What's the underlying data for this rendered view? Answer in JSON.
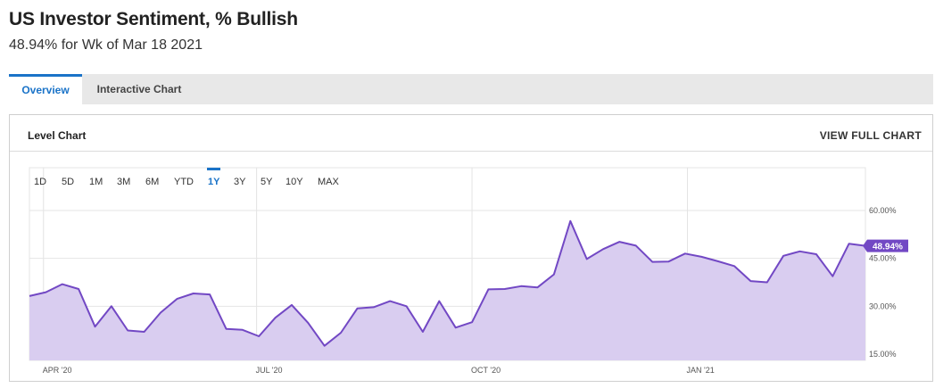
{
  "header": {
    "title": "US Investor Sentiment, % Bullish",
    "subtitle": "48.94% for Wk of Mar 18 2021"
  },
  "tabs": [
    {
      "label": "Overview",
      "active": true
    },
    {
      "label": "Interactive Chart",
      "active": false
    }
  ],
  "panel": {
    "title": "Level Chart",
    "view_full_label": "VIEW FULL CHART"
  },
  "ranges": [
    "1D",
    "5D",
    "1M",
    "3M",
    "6M",
    "YTD",
    "1Y",
    "3Y",
    "5Y",
    "10Y",
    "MAX"
  ],
  "active_range": "1Y",
  "colors": {
    "line": "#7248c4",
    "fill": "#d9cdf0",
    "accent": "#1a73c8",
    "badge": "#7248c4"
  },
  "chart_data": {
    "type": "area",
    "title": "US Investor Sentiment, % Bullish",
    "y_ticks": [
      "15.00%",
      "30.00%",
      "45.00%",
      "60.00%"
    ],
    "y_tick_values": [
      15,
      30,
      45,
      60
    ],
    "ylim": [
      15,
      60
    ],
    "x_tick_labels": [
      "APR '20",
      "JUL '20",
      "OCT '20",
      "JAN '21"
    ],
    "x_tick_dates": [
      "2020-04-01",
      "2020-07-01",
      "2020-10-01",
      "2021-01-01"
    ],
    "last_value_label": "48.94%",
    "grid": true,
    "series": [
      {
        "dates": [
          "2020-03-26",
          "2020-04-02",
          "2020-04-09",
          "2020-04-16",
          "2020-04-23",
          "2020-04-30",
          "2020-05-07",
          "2020-05-14",
          "2020-05-21",
          "2020-05-28",
          "2020-06-04",
          "2020-06-11",
          "2020-06-18",
          "2020-06-25",
          "2020-07-02",
          "2020-07-09",
          "2020-07-16",
          "2020-07-23",
          "2020-07-30",
          "2020-08-06",
          "2020-08-13",
          "2020-08-20",
          "2020-08-27",
          "2020-09-03",
          "2020-09-10",
          "2020-09-17",
          "2020-09-24",
          "2020-10-01",
          "2020-10-08",
          "2020-10-15",
          "2020-10-22",
          "2020-10-29",
          "2020-11-05",
          "2020-11-12",
          "2020-11-19",
          "2020-11-26",
          "2020-12-03",
          "2020-12-10",
          "2020-12-17",
          "2020-12-24",
          "2020-12-31",
          "2021-01-07",
          "2021-01-14",
          "2021-01-21",
          "2021-01-28",
          "2021-02-04",
          "2021-02-11",
          "2021-02-18",
          "2021-02-25",
          "2021-03-04",
          "2021-03-11",
          "2021-03-18"
        ],
        "values": [
          33.2,
          34.4,
          36.9,
          35.4,
          23.6,
          30.0,
          22.4,
          22.0,
          28.0,
          32.3,
          34.0,
          33.7,
          22.9,
          22.6,
          20.6,
          26.4,
          30.4,
          24.8,
          17.6,
          21.7,
          29.3,
          29.7,
          31.6,
          30.0,
          22.0,
          31.6,
          23.3,
          25.0,
          35.3,
          35.4,
          36.3,
          35.9,
          40.0,
          56.7,
          44.8,
          47.9,
          50.2,
          49.0,
          43.9,
          44.0,
          46.5,
          45.5,
          44.1,
          42.6,
          37.9,
          37.5,
          45.8,
          47.2,
          46.3,
          39.4,
          49.6,
          48.94
        ]
      }
    ]
  }
}
